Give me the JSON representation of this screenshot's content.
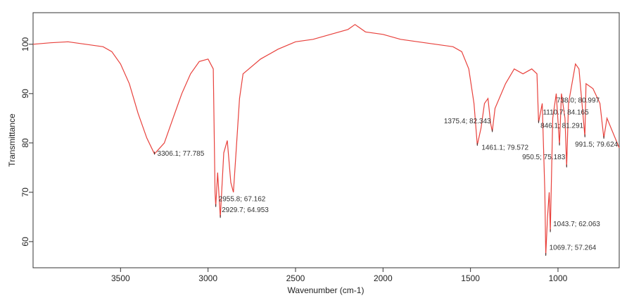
{
  "chart_data": {
    "type": "line",
    "xlabel": "Wavenumber (cm-1)",
    "ylabel": "Transmittance",
    "x": [
      4000,
      3900,
      3800,
      3700,
      3600,
      3550,
      3500,
      3450,
      3400,
      3350,
      3306.1,
      3250,
      3200,
      3150,
      3100,
      3050,
      3000,
      2970,
      2960,
      2955.8,
      2945,
      2929.7,
      2910,
      2890,
      2870,
      2855,
      2840,
      2820,
      2800,
      2700,
      2600,
      2500,
      2400,
      2300,
      2200,
      2160,
      2100,
      2000,
      1900,
      1800,
      1700,
      1600,
      1550,
      1510,
      1480,
      1461.1,
      1440,
      1420,
      1400,
      1385,
      1375.4,
      1360,
      1300,
      1250,
      1200,
      1150,
      1120,
      1110.7,
      1090,
      1075,
      1069.7,
      1060,
      1050,
      1043.7,
      1030,
      1010,
      991.5,
      980,
      960,
      950.5,
      940,
      900,
      880,
      846.1,
      840,
      800,
      760,
      738,
      720,
      650
    ],
    "series": [
      {
        "color": "#e8413c",
        "values": [
          100,
          100.3,
          100.5,
          100,
          99.5,
          98.5,
          96,
          92,
          86,
          81,
          77.785,
          80,
          85,
          90,
          94,
          96.5,
          97,
          95,
          70,
          67.162,
          74,
          64.953,
          78,
          80.5,
          72,
          70,
          78,
          89,
          94,
          97,
          99,
          100.5,
          101,
          102,
          103,
          104,
          102.5,
          102,
          101,
          100.5,
          100,
          99.5,
          98.5,
          95,
          88,
          79.572,
          83,
          88,
          89,
          84,
          82.343,
          87,
          92,
          95,
          94,
          95,
          94,
          84.165,
          88,
          70,
          57.264,
          65,
          70,
          62.063,
          85,
          90,
          79.624,
          90,
          85,
          75.183,
          88,
          96,
          95,
          81.291,
          92,
          91,
          88,
          80.997,
          85,
          79
        ]
      }
    ],
    "xlim": [
      4000,
      650
    ],
    "ylim": [
      54.7,
      106.4
    ],
    "xticks": [
      3500,
      3000,
      2500,
      2000,
      1500,
      1000
    ],
    "yticks": [
      60,
      70,
      80,
      90,
      100
    ],
    "annotations": [
      {
        "label": "3306.1; 77.785",
        "x": 3306.1,
        "y": 77.785
      },
      {
        "label": "2955.8; 67.162",
        "x": 2955.8,
        "y": 67.162
      },
      {
        "label": "2929.7; 64.953",
        "x": 2929.7,
        "y": 64.953
      },
      {
        "label": "1461.1; 79.572",
        "x": 1461.1,
        "y": 79.572
      },
      {
        "label": "1375.4; 82.343",
        "x": 1375.4,
        "y": 82.343
      },
      {
        "label": "1110.7; 84.165",
        "x": 1110.7,
        "y": 84.165
      },
      {
        "label": "738.0; 80.997",
        "x": 738.0,
        "y": 80.997
      },
      {
        "label": "846.1; 81.291",
        "x": 846.1,
        "y": 81.291
      },
      {
        "label": "991.5; 79.624",
        "x": 991.5,
        "y": 79.624
      },
      {
        "label": "950.5; 75.183",
        "x": 950.5,
        "y": 75.183
      },
      {
        "label": "1043.7; 62.063",
        "x": 1043.7,
        "y": 62.063
      },
      {
        "label": "1069.7; 57.264",
        "x": 1069.7,
        "y": 57.264
      }
    ]
  }
}
